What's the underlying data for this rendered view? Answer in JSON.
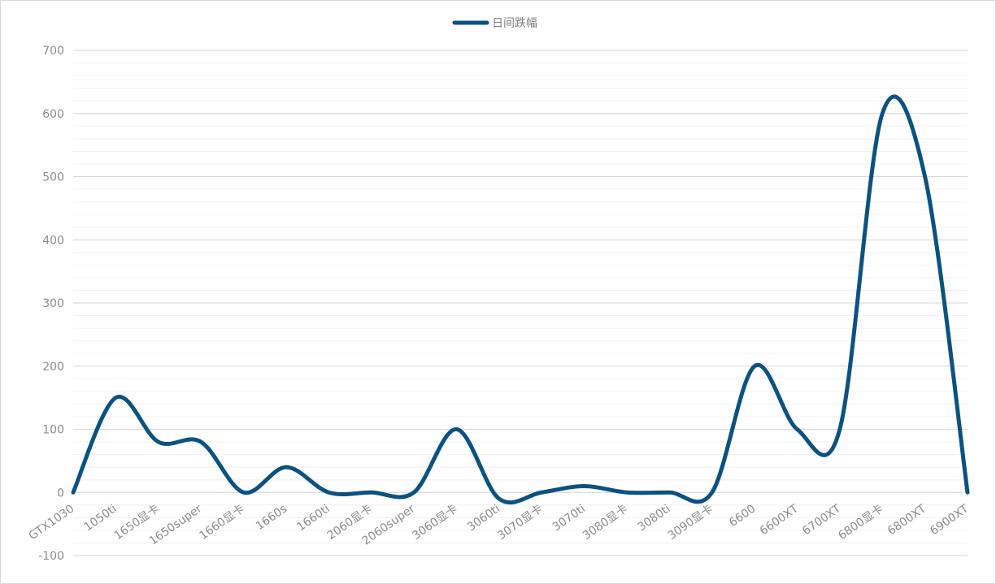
{
  "chart_data": {
    "type": "line",
    "smooth": true,
    "categories": [
      "GTX1030",
      "1050ti",
      "1650显卡",
      "1650super",
      "1660显卡",
      "1660s",
      "1660ti",
      "2060显卡",
      "2060super",
      "3060显卡",
      "3060ti",
      "3070显卡",
      "3070ti",
      "3080显卡",
      "3080ti",
      "3090显卡",
      "6600",
      "6600XT",
      "6700XT",
      "6800显卡",
      "6800XT",
      "6900XT"
    ],
    "series": [
      {
        "name": "日间跌幅",
        "color": "#0b5280",
        "values": [
          0,
          150,
          80,
          80,
          0,
          40,
          0,
          0,
          0,
          100,
          -10,
          0,
          10,
          0,
          0,
          0,
          200,
          100,
          100,
          600,
          500,
          0
        ]
      }
    ],
    "ylim": [
      -100,
      700
    ],
    "yticks": [
      -100,
      0,
      100,
      200,
      300,
      400,
      500,
      600,
      700
    ],
    "ytick_labels": [
      "-100",
      "0",
      "100",
      "200",
      "300",
      "400",
      "500",
      "600",
      "700"
    ],
    "legend_position": "top-center",
    "grid": true,
    "minor_grid": true
  }
}
